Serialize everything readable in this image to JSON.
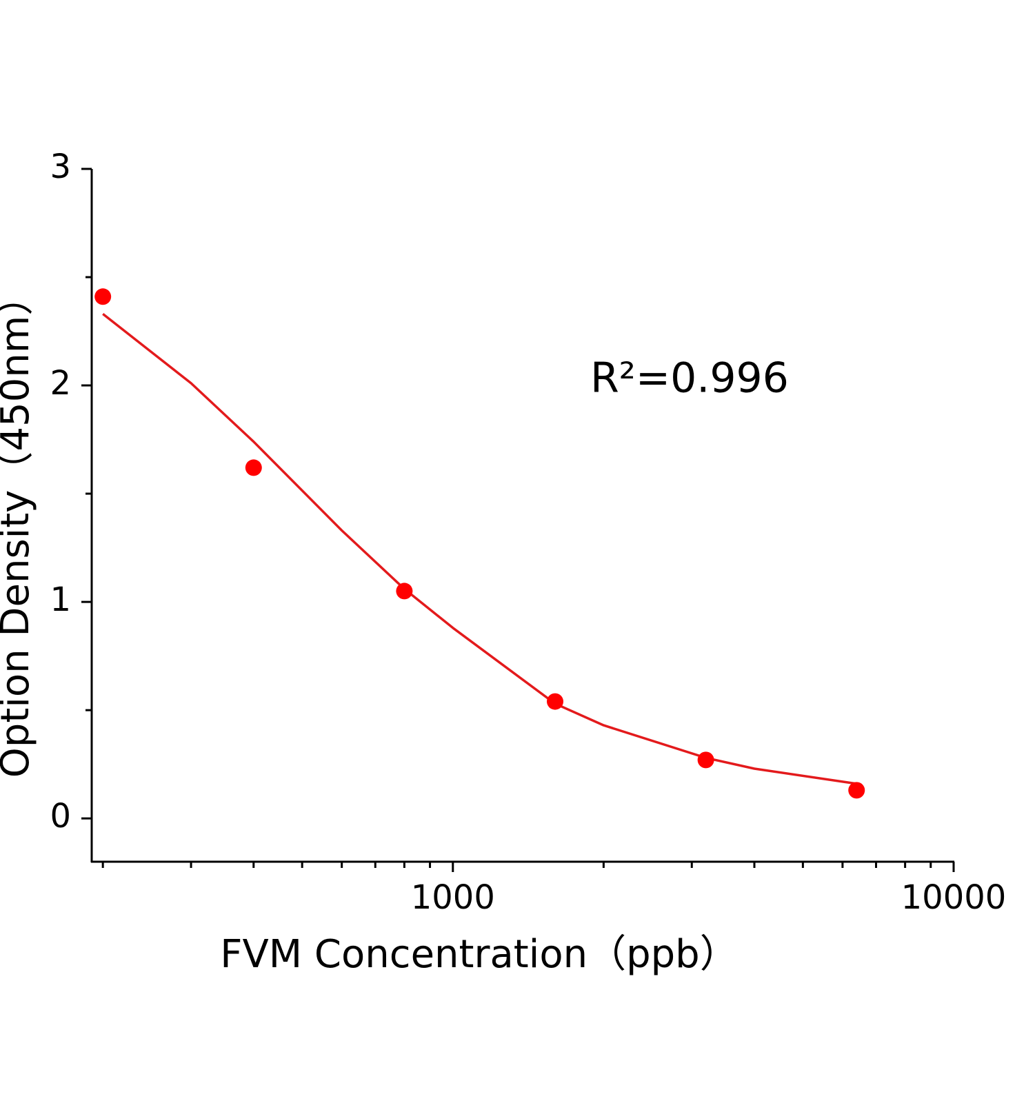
{
  "chart_data": {
    "type": "scatter",
    "x_label": "FVM Concentration（ppb）",
    "y_label": "Option Density（450nm）",
    "annotation": "R²=0.996",
    "log_x": true,
    "xlim": [
      190,
      10000
    ],
    "xticks": [
      1000,
      10000
    ],
    "xminorticks": [
      200,
      300,
      400,
      500,
      600,
      700,
      800,
      900,
      2000,
      3000,
      4000,
      5000,
      6000,
      7000,
      8000,
      9000
    ],
    "ylim": [
      -0.2,
      3
    ],
    "yticks": [
      0,
      1,
      2,
      3
    ],
    "yminorticks": [
      0.5,
      1.5,
      2.5
    ],
    "series": [
      {
        "color": "#ff0000",
        "x": [
          200,
          400,
          800,
          1600,
          3200,
          6400
        ],
        "values": [
          2.41,
          1.62,
          1.05,
          0.54,
          0.27,
          0.13
        ]
      },
      {
        "type": "line",
        "color": "#e31a1c",
        "x": [
          200,
          300,
          400,
          600,
          800,
          1000,
          1600,
          2000,
          3200,
          4000,
          6400
        ],
        "values": [
          2.33,
          2.01,
          1.74,
          1.33,
          1.06,
          0.88,
          0.53,
          0.43,
          0.28,
          0.23,
          0.16
        ]
      }
    ]
  }
}
